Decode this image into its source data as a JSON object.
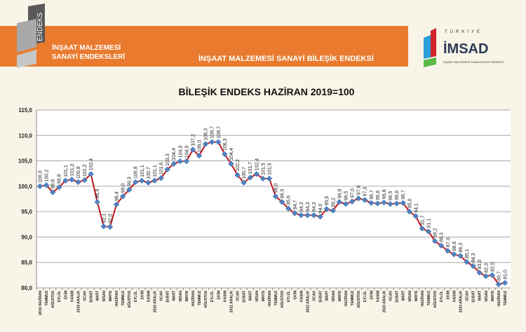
{
  "header": {
    "logo_text": "ENDEKS",
    "subtitle_line1": "İNŞAAT MALZEMESİ",
    "subtitle_line2": "SANAYİ ENDEKSLERİ",
    "banner_title": "İNŞAAT MALZEMESİ SANAYİ BİLEŞİK ENDEKSİ",
    "brand_logo": {
      "top": "TÜRKİYE",
      "name": "İMSAD",
      "tagline": "İNŞAAT MALZEMESİ SANAYİCİLERİ DERNEĞİ"
    }
  },
  "colors": {
    "banner": "#e97a2e",
    "line": "#c0191f",
    "marker": "#4f81bd",
    "grid": "#a6a6a6"
  },
  "chart_data": {
    "type": "line",
    "title": "BİLEŞİK ENDEKS HAZİRAN 2019=100",
    "ylim": [
      80,
      115
    ],
    "yticks": [
      "80,0",
      "85,0",
      "90,0",
      "95,0",
      "100,0",
      "105,0",
      "110,0",
      "115,0"
    ],
    "grid": true,
    "categories": [
      "2019 HAZİRAN",
      "TEMMUZ",
      "AĞUSTOS",
      "EYLÜL",
      "EKİM",
      "KASIM",
      "2019 ARALIK",
      "OCAK",
      "ŞUBAT",
      "MART",
      "NİSAN",
      "MAYIS",
      "HAZİRAN",
      "TEMMUZ",
      "AĞUSTOS",
      "EYLÜL",
      "EKİM",
      "KASIM",
      "2020 ARALIK",
      "OCAK",
      "ŞUBAT",
      "MART",
      "NİSAN",
      "MAYIS",
      "HAZİRAN",
      "TEMMUZ",
      "AĞUSTOS",
      "EYLÜL",
      "EKİM",
      "KASIM",
      "2021 ARALIK",
      "OCAK",
      "ŞUBAT",
      "MART",
      "NİSAN",
      "MAYIS",
      "HAZİRAN",
      "TEMMUZ",
      "AĞUSTOS",
      "EYLÜL",
      "EKİM",
      "KASIM",
      "2022 ARALIK",
      "OCAK",
      "ŞUBAT",
      "MART",
      "NİSAN",
      "MAYIS",
      "HAZİRAN",
      "TEMMUZ",
      "AĞUSTOS",
      "EYLÜL",
      "EKİM",
      "KASIM",
      "2023 ARALIK",
      "OCAK",
      "ŞUBAT",
      "MART",
      "NİSAN",
      "MAYIS",
      "HAZİRAN",
      "TEMMUZ",
      "AĞUSTOS",
      "EYLÜL",
      "EKİM",
      "KASIM",
      "2024 ARALIK",
      "OCAK",
      "ŞUBAT",
      "MART",
      "NİSAN",
      "MAYIS",
      "HAZİRAN",
      "TEMMUZ"
    ],
    "values": [
      100.0,
      100.2,
      98.8,
      99.8,
      101.1,
      101.3,
      100.8,
      101.2,
      102.4,
      96.9,
      92.1,
      92.0,
      96.4,
      98.0,
      99.3,
      100.8,
      101.1,
      100.7,
      101.1,
      101.6,
      103.3,
      104.4,
      104.9,
      104.9,
      107.2,
      106.0,
      108.3,
      108.7,
      108.7,
      106.3,
      104.4,
      102.2,
      100.7,
      101.7,
      102.4,
      101.5,
      101.5,
      98.0,
      96.9,
      95.6,
      94.7,
      94.3,
      94.3,
      94.3,
      94.0,
      95.5,
      95.2,
      96.9,
      96.5,
      97.0,
      97.6,
      97.3,
      96.7,
      96.6,
      96.8,
      96.5,
      96.6,
      96.7,
      95.0,
      94.1,
      91.7,
      91.1,
      89.2,
      88.3,
      87.3,
      86.6,
      86.3,
      85.1,
      84.3,
      83.0,
      82.3,
      82.5,
      80.7,
      81.0
    ]
  }
}
